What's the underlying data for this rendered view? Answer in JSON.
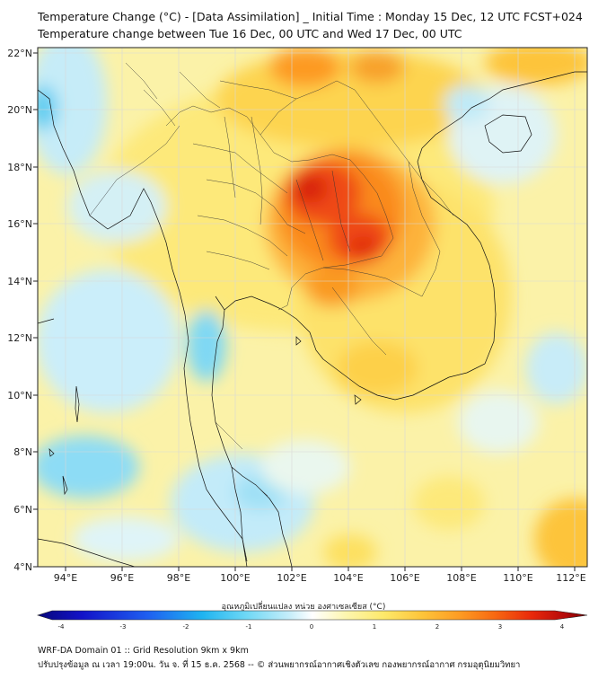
{
  "title_line1": "Temperature Change (°C) - [Data Assimilation] _ Initial Time : Monday 15 Dec, 12 UTC FCST+024",
  "title_line2": "Temperature change between Tue 16 Dec, 00 UTC and Wed 17 Dec, 00 UTC",
  "map": {
    "lon_range": [
      93,
      112.3
    ],
    "lat_range": [
      4,
      22.2
    ],
    "lon_ticks": [
      "94°E",
      "96°E",
      "98°E",
      "100°E",
      "102°E",
      "104°E",
      "106°E",
      "108°E",
      "110°E",
      "112°E"
    ],
    "lat_ticks": [
      "4°N",
      "6°N",
      "8°N",
      "10°N",
      "12°N",
      "14°N",
      "16°N",
      "18°N",
      "20°N",
      "22°N"
    ]
  },
  "colorbar": {
    "title": "อุณหภูมิเปลี่ยนแปลง หน่วย องศาเซลเซียส (°C)",
    "tick_labels": [
      "-4",
      "-3",
      "-2",
      "-1",
      "0",
      "1",
      "2",
      "3",
      "4"
    ],
    "colors": [
      "#08087a",
      "#1212c8",
      "#1f5ff0",
      "#1fb4f0",
      "#6fd8f5",
      "#c8eefa",
      "#ffffff",
      "#fdf6b0",
      "#fde96a",
      "#fdc43a",
      "#fd9a22",
      "#f86a12",
      "#e8280a",
      "#b40a0a",
      "#7a0000"
    ]
  },
  "footer_line1": "WRF-DA Domain 01 :: Grid Resolution 9km x 9km",
  "footer_line2": "ปรับปรุงข้อมูล ณ เวลา 19:00น. วัน จ. ที่ 15 ธ.ค. 2568 -- © ส่วนพยากรณ์อากาศเชิงตัวเลข กองพยากรณ์อากาศ กรมอุตุนิยมวิทยา"
}
